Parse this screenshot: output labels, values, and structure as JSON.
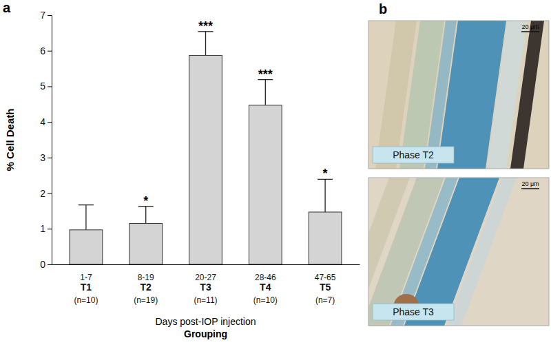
{
  "chart_data": {
    "type": "bar",
    "panel_label": "a",
    "categories": [
      "T1",
      "T2",
      "T3",
      "T4",
      "T5"
    ],
    "day_ranges": [
      "1-7",
      "8-19",
      "20-27",
      "28-46",
      "47-65"
    ],
    "sample_sizes": [
      "(n=10)",
      "(n=19)",
      "(n=11)",
      "(n=10)",
      "(n=7)"
    ],
    "values": [
      0.97,
      1.15,
      5.87,
      4.47,
      1.47
    ],
    "errors": [
      0.7,
      0.48,
      0.67,
      0.72,
      0.92
    ],
    "annotations": [
      null,
      "*",
      "***",
      "***",
      "*"
    ],
    "color": "#d4d4d4",
    "x_label": "Days post-IOP injection",
    "x_label_2": "Grouping",
    "y_label": "% Cell Death",
    "ylim": [
      0,
      7
    ],
    "yticks": [
      0,
      1,
      2,
      3,
      4,
      5,
      6,
      7
    ],
    "grid": false
  },
  "panel_b": {
    "label": "b",
    "images": [
      {
        "caption": "Phase T2",
        "scale_bar": "20 μm"
      },
      {
        "caption": "Phase T3",
        "scale_bar": "20 μm"
      }
    ]
  }
}
